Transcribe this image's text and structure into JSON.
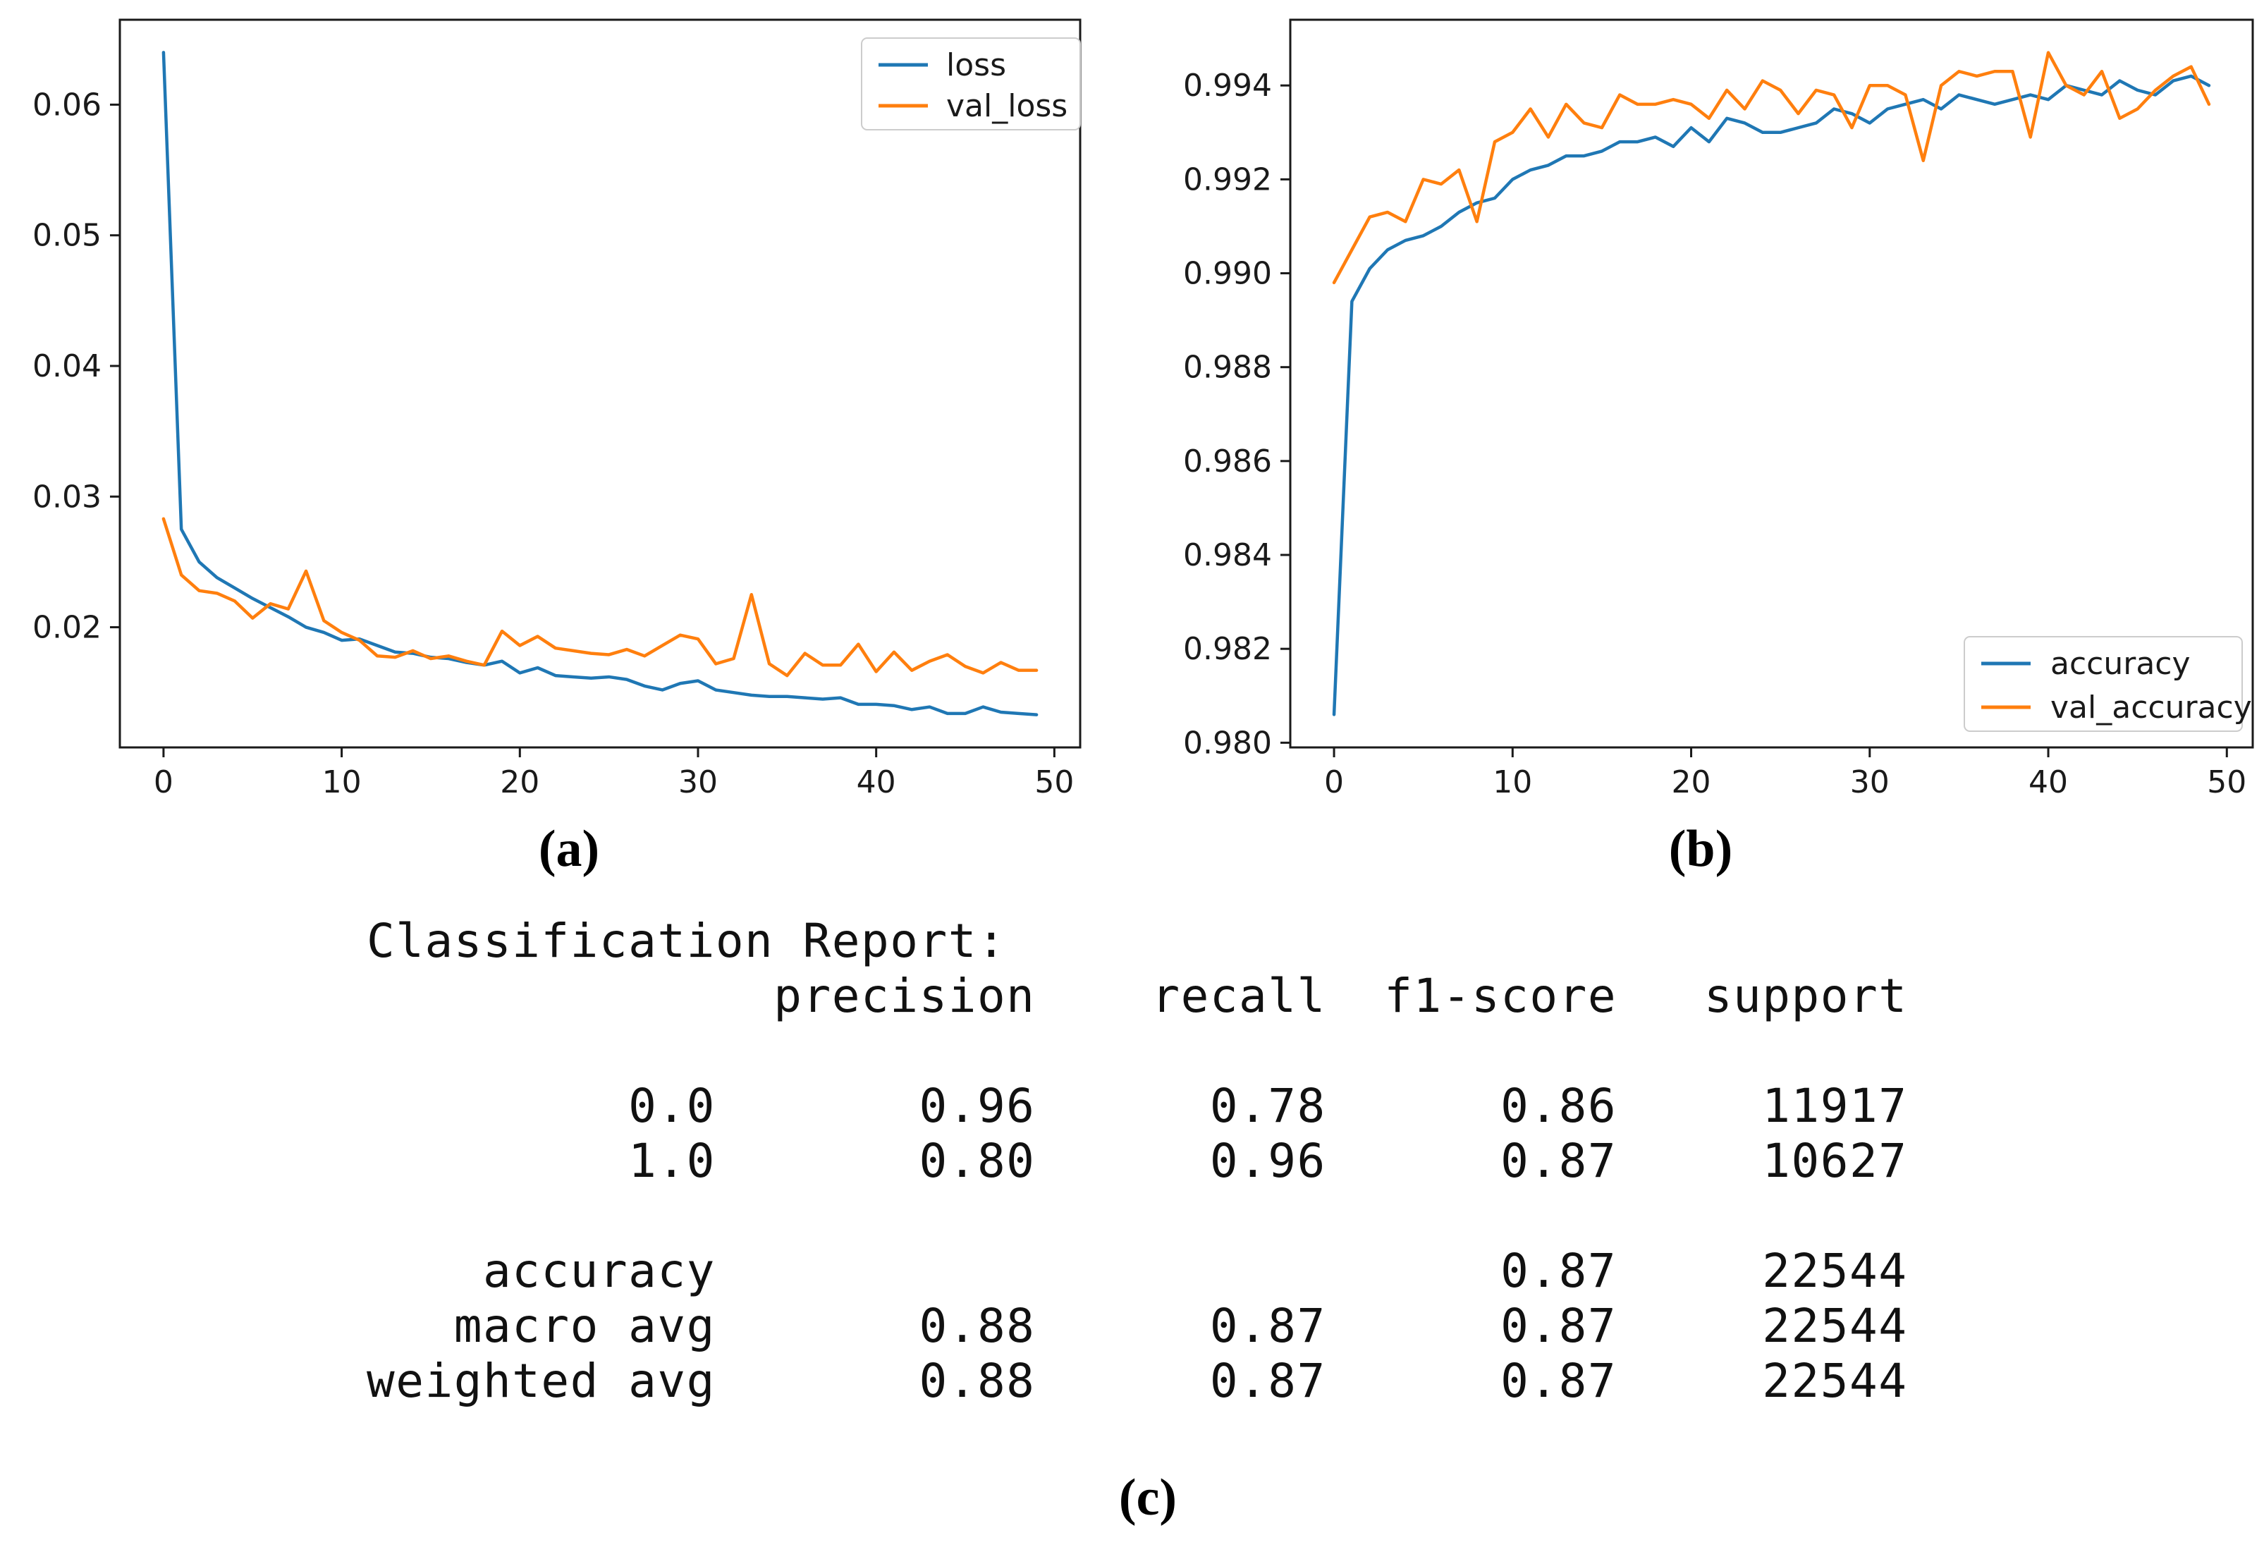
{
  "panels": {
    "a": {
      "caption": "(a)"
    },
    "b": {
      "caption": "(b)"
    },
    "c": {
      "caption": "(c)"
    }
  },
  "colors": {
    "loss": "#1f77b4",
    "val_loss": "#ff7f0e",
    "accuracy": "#1f77b4",
    "val_accuracy": "#ff7f0e",
    "axis": "#1a1a1a",
    "legend_border": "#cccccc"
  },
  "chart_data": [
    {
      "type": "line",
      "panel": "a",
      "title": "",
      "xlabel": "",
      "ylabel": "",
      "grid": false,
      "legend_position": "upper right",
      "xlim": [
        -2.45,
        51.45
      ],
      "ylim": [
        0.0108,
        0.0665
      ],
      "xticks": [
        0,
        10,
        20,
        30,
        40,
        50
      ],
      "yticks": [
        0.02,
        0.03,
        0.04,
        0.05,
        0.06
      ],
      "ytick_decimals": 2,
      "x_epochs": 50,
      "series": [
        {
          "name": "loss",
          "color": "#1f77b4",
          "values": [
            0.064,
            0.0275,
            0.025,
            0.0238,
            0.023,
            0.0222,
            0.0215,
            0.0208,
            0.02,
            0.0196,
            0.019,
            0.0191,
            0.0186,
            0.0181,
            0.018,
            0.0177,
            0.0176,
            0.0173,
            0.0171,
            0.0174,
            0.0165,
            0.0169,
            0.0163,
            0.0162,
            0.0161,
            0.0162,
            0.016,
            0.0155,
            0.0152,
            0.0157,
            0.0159,
            0.0152,
            0.015,
            0.0148,
            0.0147,
            0.0147,
            0.0146,
            0.0145,
            0.0146,
            0.0141,
            0.0141,
            0.014,
            0.0137,
            0.0139,
            0.0134,
            0.0134,
            0.0139,
            0.0135,
            0.0134,
            0.0133
          ]
        },
        {
          "name": "val_loss",
          "color": "#ff7f0e",
          "values": [
            0.0283,
            0.024,
            0.0228,
            0.0226,
            0.022,
            0.0207,
            0.0218,
            0.0214,
            0.0243,
            0.0205,
            0.0196,
            0.019,
            0.0178,
            0.0177,
            0.0182,
            0.0176,
            0.0178,
            0.0174,
            0.0171,
            0.0197,
            0.0186,
            0.0193,
            0.0184,
            0.0182,
            0.018,
            0.0179,
            0.0183,
            0.0178,
            0.0186,
            0.0194,
            0.0191,
            0.0172,
            0.0176,
            0.0225,
            0.0172,
            0.0163,
            0.018,
            0.0171,
            0.0171,
            0.0187,
            0.0166,
            0.0181,
            0.0167,
            0.0174,
            0.0179,
            0.017,
            0.0165,
            0.0173,
            0.0167,
            0.0167
          ]
        }
      ]
    },
    {
      "type": "line",
      "panel": "b",
      "title": "",
      "xlabel": "",
      "ylabel": "",
      "grid": false,
      "legend_position": "lower right",
      "xlim": [
        -2.45,
        51.45
      ],
      "ylim": [
        0.9799,
        0.9954
      ],
      "xticks": [
        0,
        10,
        20,
        30,
        40,
        50
      ],
      "yticks": [
        0.98,
        0.982,
        0.984,
        0.986,
        0.988,
        0.99,
        0.992,
        0.994
      ],
      "ytick_decimals": 3,
      "x_epochs": 50,
      "series": [
        {
          "name": "accuracy",
          "color": "#1f77b4",
          "values": [
            0.9806,
            0.9894,
            0.9901,
            0.9905,
            0.9907,
            0.9908,
            0.991,
            0.9913,
            0.9915,
            0.9916,
            0.992,
            0.9922,
            0.9923,
            0.9925,
            0.9925,
            0.9926,
            0.9928,
            0.9928,
            0.9929,
            0.9927,
            0.9931,
            0.9928,
            0.9933,
            0.9932,
            0.993,
            0.993,
            0.9931,
            0.9932,
            0.9935,
            0.9934,
            0.9932,
            0.9935,
            0.9936,
            0.9937,
            0.9935,
            0.9938,
            0.9937,
            0.9936,
            0.9937,
            0.9938,
            0.9937,
            0.994,
            0.9939,
            0.9938,
            0.9941,
            0.9939,
            0.9938,
            0.9941,
            0.9942,
            0.994
          ]
        },
        {
          "name": "val_accuracy",
          "color": "#ff7f0e",
          "values": [
            0.9898,
            0.9905,
            0.9912,
            0.9913,
            0.9911,
            0.992,
            0.9919,
            0.9922,
            0.9911,
            0.9928,
            0.993,
            0.9935,
            0.9929,
            0.9936,
            0.9932,
            0.9931,
            0.9938,
            0.9936,
            0.9936,
            0.9937,
            0.9936,
            0.9933,
            0.9939,
            0.9935,
            0.9941,
            0.9939,
            0.9934,
            0.9939,
            0.9938,
            0.9931,
            0.994,
            0.994,
            0.9938,
            0.9924,
            0.994,
            0.9943,
            0.9942,
            0.9943,
            0.9943,
            0.9929,
            0.9947,
            0.994,
            0.9938,
            0.9943,
            0.9933,
            0.9935,
            0.9939,
            0.9942,
            0.9944,
            0.9936
          ]
        }
      ]
    },
    {
      "type": "table",
      "panel": "c",
      "title": "Classification Report:",
      "columns": [
        "precision",
        "recall",
        "f1-score",
        "support"
      ],
      "rows": [
        {
          "label": "0.0",
          "precision": 0.96,
          "recall": 0.78,
          "f1_score": 0.86,
          "support": 11917
        },
        {
          "label": "1.0",
          "precision": 0.8,
          "recall": 0.96,
          "f1_score": 0.87,
          "support": 10627
        },
        {
          "label": "accuracy",
          "precision": null,
          "recall": null,
          "f1_score": 0.87,
          "support": 22544
        },
        {
          "label": "macro avg",
          "precision": 0.88,
          "recall": 0.87,
          "f1_score": 0.87,
          "support": 22544
        },
        {
          "label": "weighted avg",
          "precision": 0.88,
          "recall": 0.87,
          "f1_score": 0.87,
          "support": 22544
        }
      ],
      "preformatted_lines": [
        "Classification Report:",
        "              precision    recall  f1-score   support",
        "",
        "         0.0       0.96      0.78      0.86     11917",
        "         1.0       0.80      0.96      0.87     10627",
        "",
        "    accuracy                           0.87     22544",
        "   macro avg       0.88      0.87      0.87     22544",
        "weighted avg       0.88      0.87      0.87     22544"
      ]
    }
  ]
}
